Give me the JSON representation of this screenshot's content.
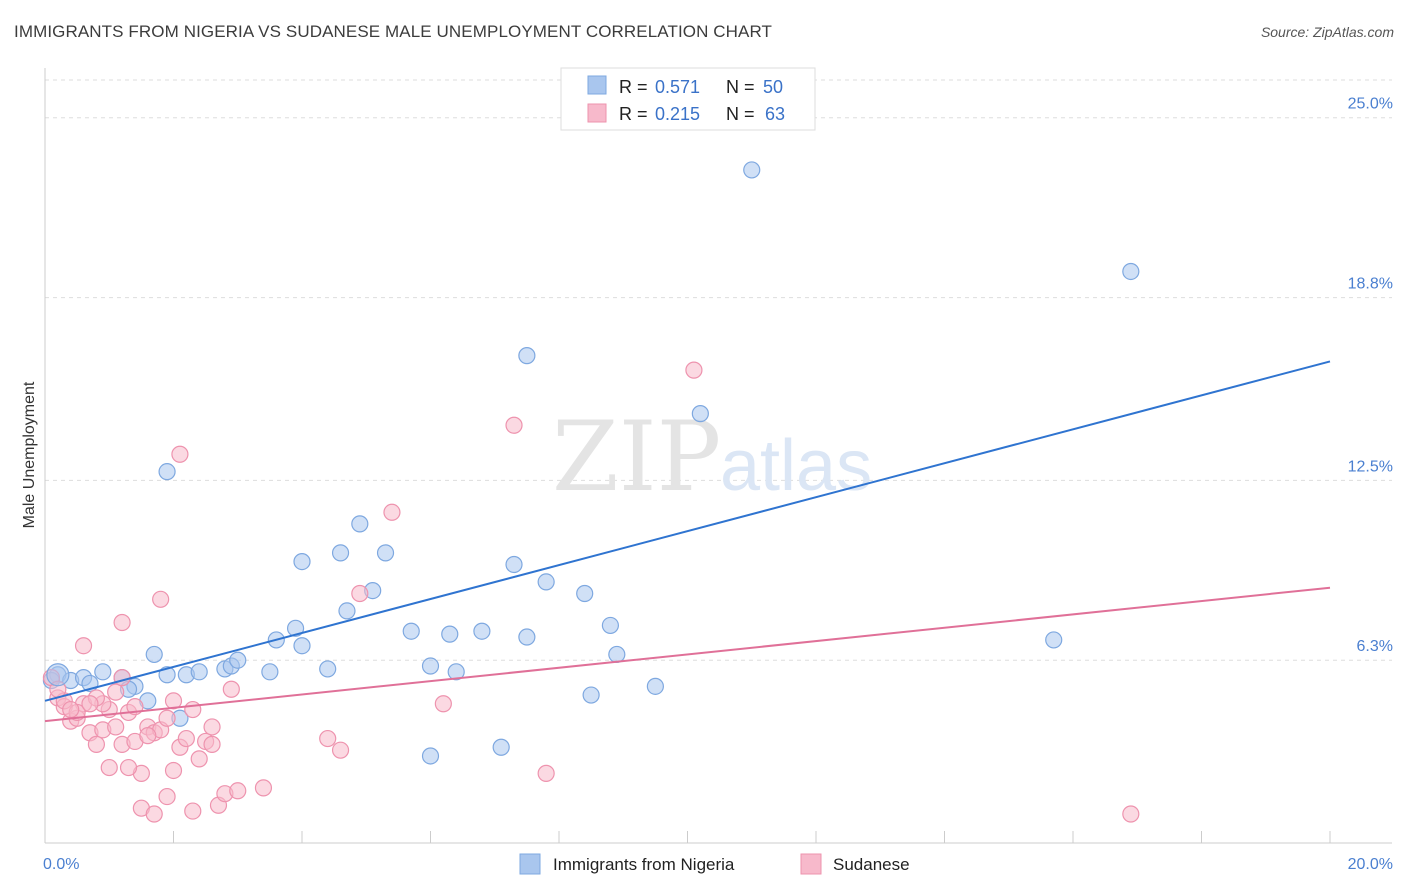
{
  "header": {
    "title": "IMMIGRANTS FROM NIGERIA VS SUDANESE MALE UNEMPLOYMENT CORRELATION CHART",
    "source": "Source: ZipAtlas.com"
  },
  "watermark": {
    "part1": "ZIP",
    "part2": "atlas"
  },
  "legend": {
    "entries": [
      {
        "r_label": "R =",
        "r_value": "0.571",
        "n_label": "N =",
        "n_value": "50",
        "color": "#a9c6ee",
        "stroke": "#7ea8e0"
      },
      {
        "r_label": "R =",
        "r_value": "0.215",
        "n_label": "N =",
        "n_value": "63",
        "color": "#f7b9cb",
        "stroke": "#ee93ae"
      }
    ]
  },
  "chart_data": {
    "type": "scatter",
    "title": "IMMIGRANTS FROM NIGERIA VS SUDANESE MALE UNEMPLOYMENT CORRELATION CHART",
    "xlabel": "",
    "ylabel": "Male Unemployment",
    "xlim": [
      0,
      20
    ],
    "ylim": [
      0,
      26.3
    ],
    "x_tick_labels": [
      "0.0%",
      "20.0%"
    ],
    "y_ticks": [
      6.3,
      12.5,
      18.8,
      25.0
    ],
    "y_tick_labels": [
      "6.3%",
      "12.5%",
      "18.8%",
      "25.0%"
    ],
    "series": [
      {
        "name": "Immigrants from Nigeria",
        "color": "#a9c6ee",
        "stroke": "#7ea8e0",
        "line_color": "#2f74d0",
        "trend": [
          [
            0,
            4.9
          ],
          [
            20,
            16.6
          ]
        ],
        "points": [
          [
            0.2,
            5.8
          ],
          [
            0.4,
            5.6
          ],
          [
            0.6,
            5.7
          ],
          [
            0.7,
            5.5
          ],
          [
            0.9,
            5.9
          ],
          [
            1.2,
            5.7
          ],
          [
            1.4,
            5.4
          ],
          [
            1.9,
            5.8
          ],
          [
            2.1,
            4.3
          ],
          [
            2.8,
            6.0
          ],
          [
            3.5,
            5.9
          ],
          [
            2.2,
            5.8
          ],
          [
            1.3,
            5.3
          ],
          [
            1.9,
            12.8
          ],
          [
            2.9,
            6.1
          ],
          [
            3.0,
            6.3
          ],
          [
            3.6,
            7.0
          ],
          [
            3.9,
            7.4
          ],
          [
            4.0,
            6.8
          ],
          [
            4.4,
            6.0
          ],
          [
            4.7,
            8.0
          ],
          [
            4.0,
            9.7
          ],
          [
            4.6,
            10.0
          ],
          [
            5.1,
            8.7
          ],
          [
            5.7,
            7.3
          ],
          [
            6.0,
            6.1
          ],
          [
            6.3,
            7.2
          ],
          [
            6.8,
            7.3
          ],
          [
            6.4,
            5.9
          ],
          [
            7.3,
            9.6
          ],
          [
            7.5,
            7.1
          ],
          [
            7.8,
            9.0
          ],
          [
            8.4,
            8.6
          ],
          [
            7.1,
            3.3
          ],
          [
            8.5,
            5.1
          ],
          [
            8.9,
            6.5
          ],
          [
            8.8,
            7.5
          ],
          [
            9.5,
            5.4
          ],
          [
            10.2,
            14.8
          ],
          [
            7.5,
            16.8
          ],
          [
            6.0,
            3.0
          ],
          [
            11.0,
            23.2
          ],
          [
            15.7,
            7.0
          ],
          [
            16.9,
            19.7
          ],
          [
            5.3,
            10.0
          ],
          [
            0.1,
            5.6
          ],
          [
            1.7,
            6.5
          ],
          [
            2.4,
            5.9
          ],
          [
            4.9,
            11.0
          ],
          [
            1.6,
            4.9
          ]
        ]
      },
      {
        "name": "Sudanese",
        "color": "#f7b9cb",
        "stroke": "#ee93ae",
        "line_color": "#e07098",
        "trend": [
          [
            0,
            4.2
          ],
          [
            20,
            8.8
          ]
        ],
        "points": [
          [
            0.1,
            5.7
          ],
          [
            0.2,
            5.0
          ],
          [
            0.3,
            4.7
          ],
          [
            0.4,
            4.2
          ],
          [
            0.5,
            4.3
          ],
          [
            0.6,
            4.8
          ],
          [
            0.7,
            3.8
          ],
          [
            0.8,
            3.4
          ],
          [
            0.9,
            3.9
          ],
          [
            1.0,
            4.6
          ],
          [
            1.1,
            4.0
          ],
          [
            1.2,
            3.4
          ],
          [
            1.3,
            4.5
          ],
          [
            1.4,
            3.5
          ],
          [
            1.5,
            2.4
          ],
          [
            1.6,
            4.0
          ],
          [
            1.7,
            3.8
          ],
          [
            1.8,
            3.9
          ],
          [
            1.9,
            4.3
          ],
          [
            2.0,
            2.5
          ],
          [
            2.1,
            3.3
          ],
          [
            2.2,
            3.6
          ],
          [
            2.3,
            4.6
          ],
          [
            2.4,
            2.9
          ],
          [
            2.5,
            3.5
          ],
          [
            2.6,
            4.0
          ],
          [
            2.7,
            1.3
          ],
          [
            2.8,
            1.7
          ],
          [
            2.9,
            5.3
          ],
          [
            3.0,
            1.8
          ],
          [
            0.6,
            6.8
          ],
          [
            1.2,
            7.6
          ],
          [
            1.8,
            8.4
          ],
          [
            2.1,
            13.4
          ],
          [
            1.5,
            1.2
          ],
          [
            3.4,
            1.9
          ],
          [
            4.6,
            3.2
          ],
          [
            4.9,
            8.6
          ],
          [
            5.4,
            11.4
          ],
          [
            6.2,
            4.8
          ],
          [
            7.3,
            14.4
          ],
          [
            7.8,
            2.4
          ],
          [
            10.1,
            16.3
          ],
          [
            16.9,
            1.0
          ],
          [
            0.5,
            4.5
          ],
          [
            0.9,
            4.8
          ],
          [
            1.1,
            5.2
          ],
          [
            0.3,
            4.9
          ],
          [
            0.8,
            5.0
          ],
          [
            1.3,
            2.6
          ],
          [
            1.0,
            2.6
          ],
          [
            1.7,
            1.0
          ],
          [
            2.0,
            4.9
          ],
          [
            2.3,
            1.1
          ],
          [
            0.2,
            5.3
          ],
          [
            0.4,
            4.6
          ],
          [
            1.4,
            4.7
          ],
          [
            1.6,
            3.7
          ],
          [
            0.7,
            4.8
          ],
          [
            1.2,
            5.7
          ],
          [
            2.6,
            3.4
          ],
          [
            1.9,
            1.6
          ],
          [
            4.4,
            3.6
          ]
        ]
      }
    ]
  },
  "bottom_legend": {
    "items": [
      {
        "label": "Immigrants from Nigeria",
        "color": "#a9c6ee",
        "stroke": "#7ea8e0"
      },
      {
        "label": "Sudanese",
        "color": "#f7b9cb",
        "stroke": "#ee93ae"
      }
    ]
  }
}
